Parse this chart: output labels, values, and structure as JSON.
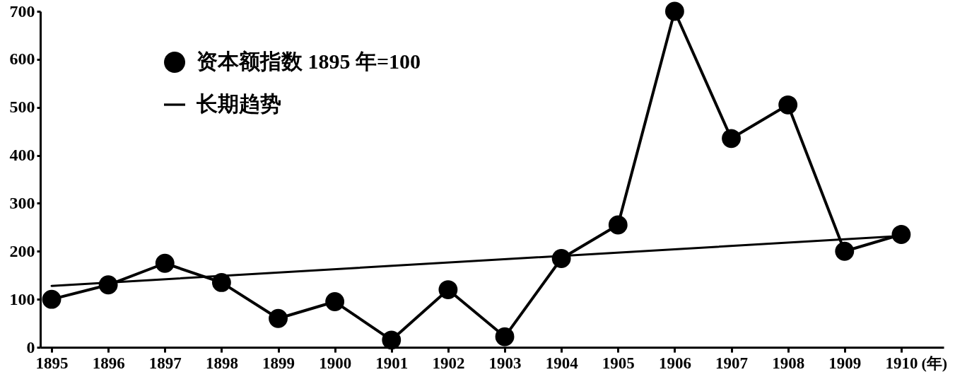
{
  "chart_data": {
    "type": "line",
    "x": [
      1895,
      1896,
      1897,
      1898,
      1899,
      1900,
      1901,
      1902,
      1903,
      1904,
      1905,
      1906,
      1907,
      1908,
      1909,
      1910
    ],
    "xlabel": "(年)",
    "xlim": [
      1894.8,
      1910.75
    ],
    "xticks": [
      1895,
      1896,
      1897,
      1898,
      1899,
      1900,
      1901,
      1902,
      1903,
      1904,
      1905,
      1906,
      1907,
      1908,
      1909,
      1910
    ],
    "ylim": [
      0,
      700
    ],
    "yticks": [
      0,
      100,
      200,
      300,
      400,
      500,
      600,
      700
    ],
    "legend": "top left",
    "line_style": "solid",
    "series": [
      {
        "name": "资本额指数 1895 年=100",
        "color": "#000000",
        "marker": "circle",
        "values": [
          100,
          130,
          175,
          135,
          60,
          95,
          15,
          120,
          22,
          185,
          255,
          700,
          435,
          505,
          200,
          235
        ]
      },
      {
        "name": "长期趋势",
        "color": "#000000",
        "marker": "none",
        "x": [
          1895,
          1910
        ],
        "values": [
          128,
          232
        ]
      }
    ]
  }
}
